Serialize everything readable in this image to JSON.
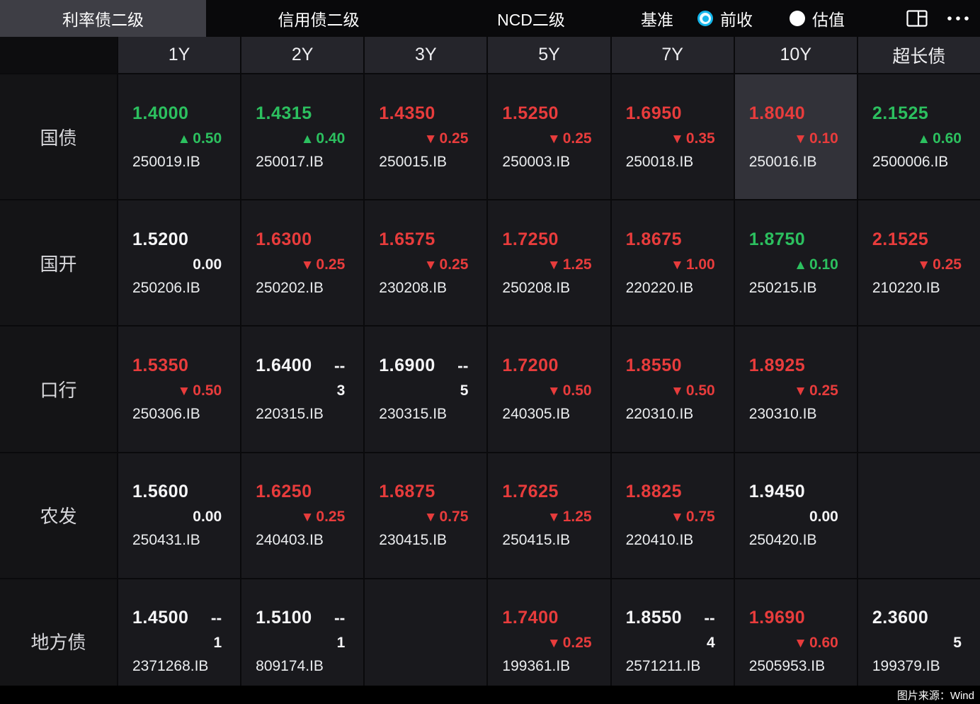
{
  "topbar": {
    "tabs": [
      {
        "label": "利率债二级",
        "name": "tab-rate-bond-secondary",
        "active": true
      },
      {
        "label": "信用债二级",
        "name": "tab-credit-bond-secondary",
        "active": false
      },
      {
        "label": "NCD二级",
        "name": "tab-ncd-secondary",
        "active": false
      }
    ],
    "benchmark_label": "基准",
    "radios": [
      {
        "label": "前收",
        "name": "radio-prev-close",
        "selected": true
      },
      {
        "label": "估值",
        "name": "radio-valuation",
        "selected": false
      }
    ]
  },
  "colors": {
    "up_green": "#2cc05f",
    "down_red": "#e83c3c",
    "radio_accent": "#13b5ea"
  },
  "table": {
    "columns": [
      {
        "label": "1Y",
        "name": "column-header-1y"
      },
      {
        "label": "2Y",
        "name": "column-header-2y"
      },
      {
        "label": "3Y",
        "name": "column-header-3y"
      },
      {
        "label": "5Y",
        "name": "column-header-5y"
      },
      {
        "label": "7Y",
        "name": "column-header-7y"
      },
      {
        "label": "10Y",
        "name": "column-header-10y"
      },
      {
        "label": "超长债",
        "name": "column-header-ultra-long"
      }
    ],
    "rows": [
      {
        "label": "国债",
        "name": "row-treasury",
        "cells": [
          {
            "value": "1.4000",
            "value_color": "up",
            "change": "0.50",
            "change_dir": "up",
            "code": "250019.IB"
          },
          {
            "value": "1.4315",
            "value_color": "up",
            "change": "0.40",
            "change_dir": "up",
            "code": "250017.IB"
          },
          {
            "value": "1.4350",
            "value_color": "down",
            "change": "0.25",
            "change_dir": "down",
            "code": "250015.IB"
          },
          {
            "value": "1.5250",
            "value_color": "down",
            "change": "0.25",
            "change_dir": "down",
            "code": "250003.IB"
          },
          {
            "value": "1.6950",
            "value_color": "down",
            "change": "0.35",
            "change_dir": "down",
            "code": "250018.IB"
          },
          {
            "value": "1.8040",
            "value_color": "down",
            "change": "0.10",
            "change_dir": "down",
            "code": "250016.IB",
            "highlighted": true
          },
          {
            "value": "2.1525",
            "value_color": "up",
            "change": "0.60",
            "change_dir": "up",
            "code": "2500006.IB"
          }
        ]
      },
      {
        "label": "国开",
        "name": "row-cdb",
        "cells": [
          {
            "value": "1.5200",
            "value_color": "flat",
            "change": "0.00",
            "change_dir": "flat",
            "code": "250206.IB"
          },
          {
            "value": "1.6300",
            "value_color": "down",
            "change": "0.25",
            "change_dir": "down",
            "code": "250202.IB"
          },
          {
            "value": "1.6575",
            "value_color": "down",
            "change": "0.25",
            "change_dir": "down",
            "code": "230208.IB"
          },
          {
            "value": "1.7250",
            "value_color": "down",
            "change": "1.25",
            "change_dir": "down",
            "code": "250208.IB"
          },
          {
            "value": "1.8675",
            "value_color": "down",
            "change": "1.00",
            "change_dir": "down",
            "code": "220220.IB"
          },
          {
            "value": "1.8750",
            "value_color": "up",
            "change": "0.10",
            "change_dir": "up",
            "code": "250215.IB"
          },
          {
            "value": "2.1525",
            "value_color": "down",
            "change": "0.25",
            "change_dir": "down",
            "code": "210220.IB"
          }
        ]
      },
      {
        "label": "口行",
        "name": "row-exim",
        "cells": [
          {
            "value": "1.5350",
            "value_color": "down",
            "change": "0.50",
            "change_dir": "down",
            "code": "250306.IB"
          },
          {
            "value": "1.6400",
            "value_color": "flat",
            "dash": "--",
            "change": "3",
            "change_dir": "flat",
            "code": "220315.IB"
          },
          {
            "value": "1.6900",
            "value_color": "flat",
            "dash": "--",
            "change": "5",
            "change_dir": "flat",
            "code": "230315.IB"
          },
          {
            "value": "1.7200",
            "value_color": "down",
            "change": "0.50",
            "change_dir": "down",
            "code": "240305.IB"
          },
          {
            "value": "1.8550",
            "value_color": "down",
            "change": "0.50",
            "change_dir": "down",
            "code": "220310.IB"
          },
          {
            "value": "1.8925",
            "value_color": "down",
            "change": "0.25",
            "change_dir": "down",
            "code": "230310.IB"
          },
          {
            "empty": true
          }
        ]
      },
      {
        "label": "农发",
        "name": "row-adbc",
        "cells": [
          {
            "value": "1.5600",
            "value_color": "flat",
            "change": "0.00",
            "change_dir": "flat",
            "code": "250431.IB"
          },
          {
            "value": "1.6250",
            "value_color": "down",
            "change": "0.25",
            "change_dir": "down",
            "code": "240403.IB"
          },
          {
            "value": "1.6875",
            "value_color": "down",
            "change": "0.75",
            "change_dir": "down",
            "code": "230415.IB"
          },
          {
            "value": "1.7625",
            "value_color": "down",
            "change": "1.25",
            "change_dir": "down",
            "code": "250415.IB"
          },
          {
            "value": "1.8825",
            "value_color": "down",
            "change": "0.75",
            "change_dir": "down",
            "code": "220410.IB"
          },
          {
            "value": "1.9450",
            "value_color": "flat",
            "change": "0.00",
            "change_dir": "flat",
            "code": "250420.IB"
          },
          {
            "empty": true
          }
        ]
      },
      {
        "label": "地方债",
        "name": "row-local-gov",
        "cells": [
          {
            "value": "1.4500",
            "value_color": "flat",
            "dash": "--",
            "change": "1",
            "change_dir": "flat",
            "code": "2371268.IB"
          },
          {
            "value": "1.5100",
            "value_color": "flat",
            "dash": "--",
            "change": "1",
            "change_dir": "flat",
            "code": "809174.IB"
          },
          {
            "empty": true
          },
          {
            "value": "1.7400",
            "value_color": "down",
            "change": "0.25",
            "change_dir": "down",
            "code": "199361.IB"
          },
          {
            "value": "1.8550",
            "value_color": "flat",
            "dash": "--",
            "change": "4",
            "change_dir": "flat",
            "code": "2571211.IB"
          },
          {
            "value": "1.9690",
            "value_color": "down",
            "change": "0.60",
            "change_dir": "down",
            "code": "2505953.IB"
          },
          {
            "value": "2.3600",
            "value_color": "flat",
            "change": "5",
            "change_dir": "flat",
            "code": "199379.IB"
          }
        ]
      }
    ]
  },
  "footer": {
    "source": "图片来源：Wind"
  }
}
